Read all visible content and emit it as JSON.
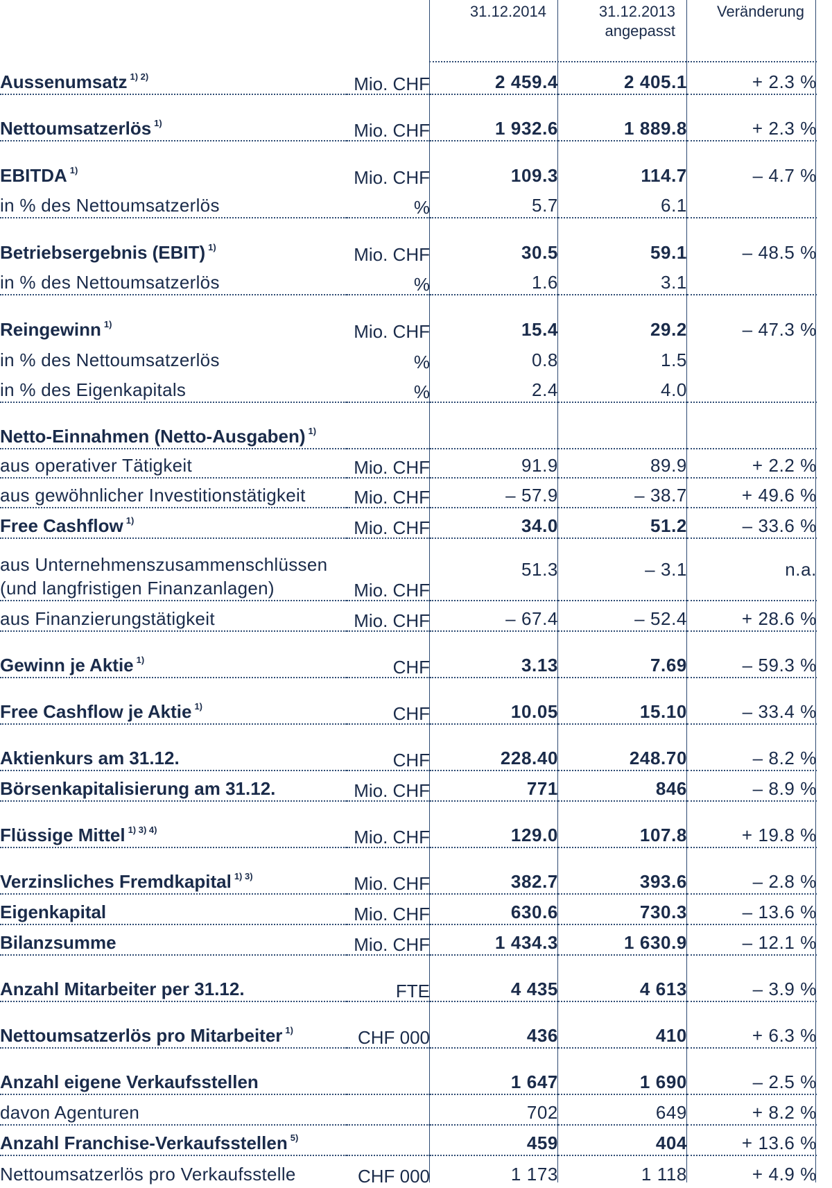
{
  "header": {
    "col1": "31.12.2014",
    "col2": "31.12.2013",
    "col2_sub": "angepasst",
    "col3": "Veränderung"
  },
  "rows": [
    {
      "label": "Aussenumsatz",
      "fn": "1) 2)",
      "unit": "Mio. CHF",
      "v1": "2 459.4",
      "v2": "2 405.1",
      "v3": "+ 2.3 %"
    },
    {
      "label": "Nettoumsatzerlös",
      "fn": "1)",
      "unit": "Mio. CHF",
      "v1": "1 932.6",
      "v2": "1 889.8",
      "v3": "+ 2.3 %"
    },
    {
      "label": "EBITDA",
      "fn": "1)",
      "unit": "Mio. CHF",
      "v1": "109.3",
      "v2": "114.7",
      "v3": "– 4.7 %"
    },
    {
      "label": "in % des Nettoumsatzerlös",
      "unit": "%",
      "v1": "5.7",
      "v2": "6.1",
      "v3": ""
    },
    {
      "label": "Betriebsergebnis (EBIT)",
      "fn": "1)",
      "unit": "Mio. CHF",
      "v1": "30.5",
      "v2": "59.1",
      "v3": "– 48.5 %"
    },
    {
      "label": "in % des Nettoumsatzerlös",
      "unit": "%",
      "v1": "1.6",
      "v2": "3.1",
      "v3": ""
    },
    {
      "label": "Reingewinn",
      "fn": "1)",
      "unit": "Mio. CHF",
      "v1": "15.4",
      "v2": "29.2",
      "v3": "– 47.3 %"
    },
    {
      "label": "in % des Nettoumsatzerlös",
      "unit": "%",
      "v1": "0.8",
      "v2": "1.5",
      "v3": ""
    },
    {
      "label": "in % des Eigenkapitals",
      "unit": "%",
      "v1": "2.4",
      "v2": "4.0",
      "v3": ""
    },
    {
      "label": "Netto-Einnahmen (Netto-Ausgaben)",
      "fn": "1)",
      "unit": "",
      "v1": "",
      "v2": "",
      "v3": ""
    },
    {
      "label": "aus operativer Tätigkeit",
      "unit": "Mio. CHF",
      "v1": "91.9",
      "v2": "89.9",
      "v3": "+ 2.2 %"
    },
    {
      "label": "aus gewöhnlicher Investitionstätigkeit",
      "unit": "Mio. CHF",
      "v1": "– 57.9",
      "v2": "– 38.7",
      "v3": "+ 49.6 %"
    },
    {
      "label": "Free Cashflow",
      "fn": "1)",
      "unit": "Mio. CHF",
      "v1": "34.0",
      "v2": "51.2",
      "v3": "– 33.6 %"
    },
    {
      "label": "aus Unternehmenszusammenschlüssen",
      "label2": "(und langfristigen Finanzanlagen)",
      "unit": "Mio. CHF",
      "v1": "51.3",
      "v2": "– 3.1",
      "v3": "n.a."
    },
    {
      "label": "aus Finanzierungstätigkeit",
      "unit": "Mio. CHF",
      "v1": "– 67.4",
      "v2": "– 52.4",
      "v3": "+ 28.6 %"
    },
    {
      "label": "Gewinn je Aktie",
      "fn": "1)",
      "unit": "CHF",
      "v1": "3.13",
      "v2": "7.69",
      "v3": "– 59.3 %"
    },
    {
      "label": "Free Cashflow je Aktie",
      "fn": "1)",
      "unit": "CHF",
      "v1": "10.05",
      "v2": "15.10",
      "v3": "– 33.4 %"
    },
    {
      "label": "Aktienkurs am 31.12.",
      "unit": "CHF",
      "v1": "228.40",
      "v2": "248.70",
      "v3": "– 8.2 %"
    },
    {
      "label": "Börsenkapitalisierung am 31.12.",
      "unit": "Mio. CHF",
      "v1": "771",
      "v2": "846",
      "v3": "– 8.9 %"
    },
    {
      "label": "Flüssige Mittel",
      "fn": "1) 3) 4)",
      "unit": "Mio. CHF",
      "v1": "129.0",
      "v2": "107.8",
      "v3": "+ 19.8 %"
    },
    {
      "label": "Verzinsliches Fremdkapital",
      "fn": "1) 3)",
      "unit": "Mio. CHF",
      "v1": "382.7",
      "v2": "393.6",
      "v3": "– 2.8 %"
    },
    {
      "label": "Eigenkapital",
      "unit": "Mio. CHF",
      "v1": "630.6",
      "v2": "730.3",
      "v3": "– 13.6 %"
    },
    {
      "label": "Bilanzsumme",
      "unit": "Mio. CHF",
      "v1": "1 434.3",
      "v2": "1 630.9",
      "v3": "– 12.1 %"
    },
    {
      "label": "Anzahl Mitarbeiter per 31.12.",
      "unit": "FTE",
      "v1": "4 435",
      "v2": "4 613",
      "v3": "– 3.9 %"
    },
    {
      "label": "Nettoumsatzerlös pro Mitarbeiter",
      "fn": "1)",
      "unit": "CHF 000",
      "v1": "436",
      "v2": "410",
      "v3": "+ 6.3 %"
    },
    {
      "label": "Anzahl eigene Verkaufsstellen",
      "unit": "",
      "v1": "1 647",
      "v2": "1 690",
      "v3": "– 2.5 %"
    },
    {
      "label": "davon Agenturen",
      "unit": "",
      "v1": "702",
      "v2": "649",
      "v3": "+ 8.2 %"
    },
    {
      "label": "Anzahl Franchise-Verkaufsstellen",
      "fn": "5)",
      "unit": "",
      "v1": "459",
      "v2": "404",
      "v3": "+ 13.6 %"
    },
    {
      "label": "Nettoumsatzerlös pro Verkaufsstelle",
      "unit": "CHF 000",
      "v1": "1 173",
      "v2": "1 118",
      "v3": "+ 4.9 %"
    }
  ]
}
